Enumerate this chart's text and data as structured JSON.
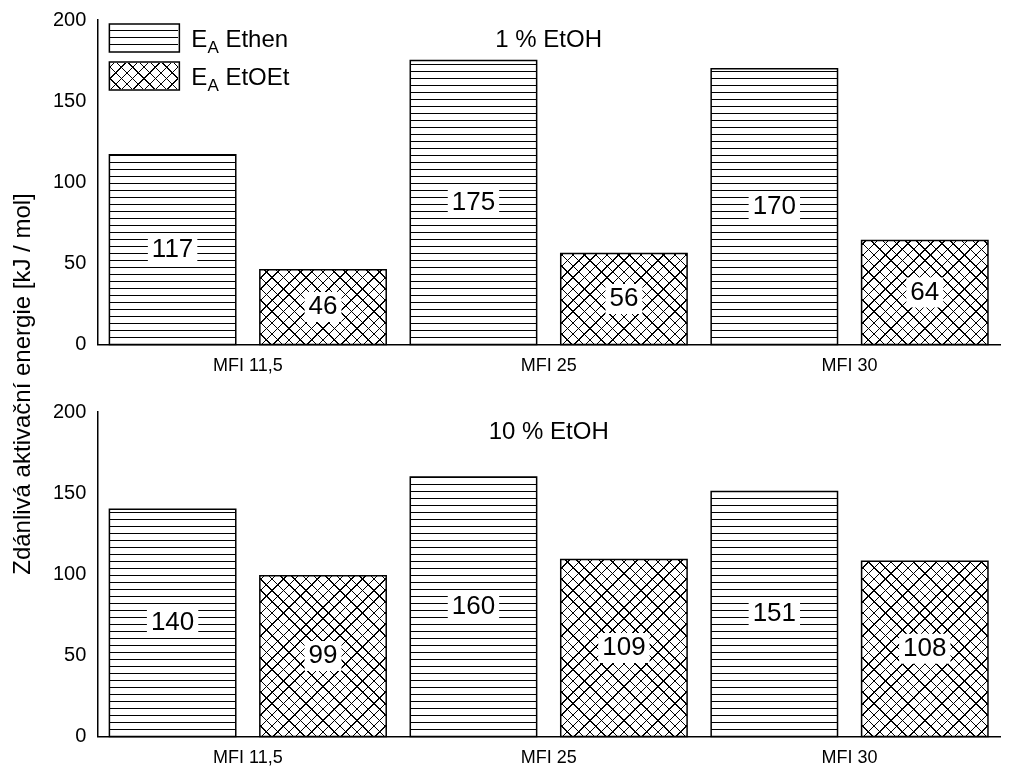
{
  "chart_data": [
    {
      "type": "bar",
      "title": "1 % EtOH",
      "ylabel": "Zdánlivá aktivační energie [kJ / mol]",
      "categories": [
        "MFI 11,5",
        "MFI 25",
        "MFI 30"
      ],
      "series": [
        {
          "name": "E$_{A}$ Ethen",
          "color": "#ffffff",
          "values": [
            117,
            175,
            170
          ]
        },
        {
          "name": "E$_{A}$ EtOEt",
          "color": "#ffffff",
          "values": [
            46,
            56,
            64
          ]
        }
      ],
      "ylim": [
        0,
        200
      ],
      "yticks": [
        0,
        50,
        100,
        150,
        200
      ],
      "grid": false,
      "legend": "top left",
      "data_labels": true
    },
    {
      "type": "bar",
      "title": "10 % EtOH",
      "categories": [
        "MFI 11,5",
        "MFI 25",
        "MFI 30"
      ],
      "series": [
        {
          "color": "#ffffff",
          "values": [
            140,
            160,
            151
          ]
        },
        {
          "color": "#ffffff",
          "values": [
            99,
            109,
            108
          ]
        }
      ],
      "ylim": [
        0,
        200
      ],
      "yticks": [
        0,
        50,
        100,
        150,
        200
      ],
      "grid": false,
      "legend": false,
      "data_labels": true
    }
  ]
}
